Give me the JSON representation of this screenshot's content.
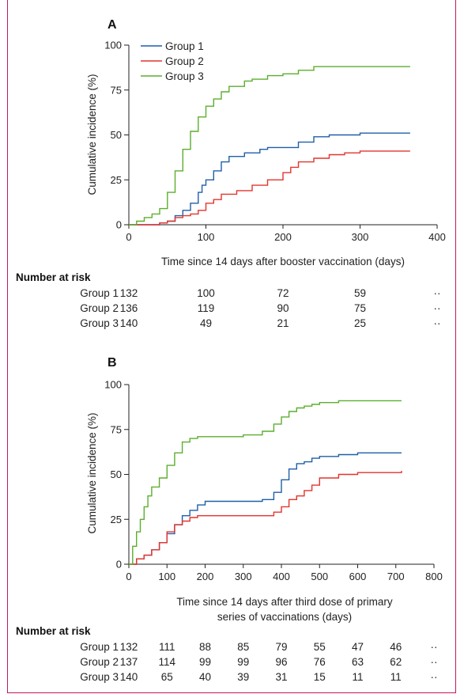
{
  "chart_data": [
    {
      "type": "line",
      "panel_label": "A",
      "xlabel": "Time since 14 days after booster vaccination (days)",
      "ylabel": "Cumulative incidence (%)",
      "xlim": [
        0,
        400
      ],
      "ylim": [
        0,
        100
      ],
      "x_ticks": [
        "0",
        "100",
        "200",
        "300",
        "400"
      ],
      "y_ticks": [
        "0",
        "25",
        "50",
        "75",
        "100"
      ],
      "legend_position": "top-left",
      "series": [
        {
          "name": "Group 1",
          "color": "#1f5fa8",
          "x": [
            0,
            20,
            40,
            50,
            60,
            70,
            80,
            90,
            95,
            100,
            110,
            120,
            130,
            150,
            170,
            180,
            200,
            220,
            240,
            260,
            300,
            365
          ],
          "y": [
            0,
            0,
            1,
            2,
            5,
            8,
            12,
            18,
            22,
            25,
            30,
            35,
            38,
            40,
            42,
            43,
            43,
            46,
            49,
            50,
            51,
            51
          ]
        },
        {
          "name": "Group 2",
          "color": "#e2342d",
          "x": [
            0,
            20,
            40,
            50,
            60,
            70,
            80,
            90,
            100,
            110,
            120,
            140,
            160,
            180,
            200,
            210,
            220,
            240,
            260,
            280,
            300,
            365
          ],
          "y": [
            0,
            0,
            1,
            2,
            4,
            5,
            6,
            8,
            12,
            14,
            17,
            19,
            22,
            25,
            29,
            32,
            35,
            37,
            39,
            40,
            41,
            41
          ]
        },
        {
          "name": "Group 3",
          "color": "#5cae2e",
          "x": [
            0,
            10,
            20,
            30,
            40,
            50,
            60,
            70,
            80,
            90,
            100,
            110,
            120,
            130,
            150,
            160,
            180,
            200,
            220,
            240,
            260,
            300,
            365
          ],
          "y": [
            0,
            2,
            4,
            6,
            9,
            18,
            30,
            42,
            52,
            60,
            66,
            70,
            74,
            77,
            80,
            81,
            83,
            84,
            86,
            88,
            88,
            88,
            88
          ]
        }
      ],
      "number_at_risk": {
        "title": "Number at risk",
        "x": [
          0,
          100,
          200,
          300,
          400
        ],
        "rows": [
          {
            "name": "Group 1",
            "values": [
              "132",
              "100",
              "72",
              "59",
              "··"
            ]
          },
          {
            "name": "Group 2",
            "values": [
              "136",
              "119",
              "90",
              "75",
              "··"
            ]
          },
          {
            "name": "Group 3",
            "values": [
              "140",
              "49",
              "21",
              "25",
              "··"
            ]
          }
        ]
      }
    },
    {
      "type": "line",
      "panel_label": "B",
      "xlabel": "Time since 14 days after third dose of primary series of vaccinations (days)",
      "xlabel_lines": [
        "Time since 14 days after third dose of primary",
        "series of vaccinations (days)"
      ],
      "ylabel": "Cumulative incidence (%)",
      "xlim": [
        0,
        800
      ],
      "ylim": [
        0,
        100
      ],
      "x_ticks": [
        "0",
        "100",
        "200",
        "300",
        "400",
        "500",
        "600",
        "700",
        "800"
      ],
      "y_ticks": [
        "0",
        "25",
        "50",
        "75",
        "100"
      ],
      "series": [
        {
          "name": "Group 1",
          "color": "#1f5fa8",
          "x": [
            0,
            20,
            40,
            60,
            80,
            100,
            120,
            140,
            160,
            180,
            200,
            250,
            300,
            350,
            380,
            400,
            420,
            440,
            460,
            480,
            500,
            550,
            600,
            715
          ],
          "y": [
            0,
            3,
            5,
            8,
            12,
            17,
            22,
            27,
            30,
            33,
            35,
            35,
            35,
            36,
            40,
            47,
            53,
            56,
            57,
            59,
            60,
            61,
            62,
            62
          ]
        },
        {
          "name": "Group 2",
          "color": "#e2342d",
          "x": [
            0,
            20,
            40,
            60,
            80,
            100,
            120,
            140,
            160,
            180,
            200,
            250,
            300,
            350,
            380,
            400,
            420,
            440,
            460,
            480,
            500,
            550,
            600,
            715
          ],
          "y": [
            0,
            3,
            5,
            8,
            12,
            18,
            22,
            24,
            26,
            27,
            27,
            27,
            27,
            27,
            29,
            32,
            36,
            38,
            41,
            44,
            48,
            50,
            51,
            52
          ]
        },
        {
          "name": "Group 3",
          "color": "#5cae2e",
          "x": [
            0,
            10,
            20,
            30,
            40,
            50,
            60,
            80,
            100,
            120,
            140,
            160,
            180,
            200,
            300,
            350,
            380,
            400,
            420,
            440,
            460,
            480,
            500,
            550,
            600,
            715
          ],
          "y": [
            0,
            10,
            18,
            25,
            32,
            38,
            43,
            48,
            55,
            62,
            68,
            70,
            71,
            71,
            72,
            74,
            78,
            82,
            85,
            87,
            88,
            89,
            90,
            91,
            91,
            91
          ]
        }
      ],
      "number_at_risk": {
        "title": "Number at risk",
        "x": [
          0,
          100,
          200,
          300,
          400,
          500,
          600,
          700,
          800
        ],
        "rows": [
          {
            "name": "Group 1",
            "values": [
              "132",
              "111",
              "88",
              "85",
              "79",
              "55",
              "47",
              "46",
              "··"
            ]
          },
          {
            "name": "Group 2",
            "values": [
              "137",
              "114",
              "99",
              "99",
              "96",
              "76",
              "63",
              "62",
              "··"
            ]
          },
          {
            "name": "Group 3",
            "values": [
              "140",
              "65",
              "40",
              "39",
              "31",
              "15",
              "11",
              "11",
              "··"
            ]
          }
        ]
      }
    }
  ]
}
